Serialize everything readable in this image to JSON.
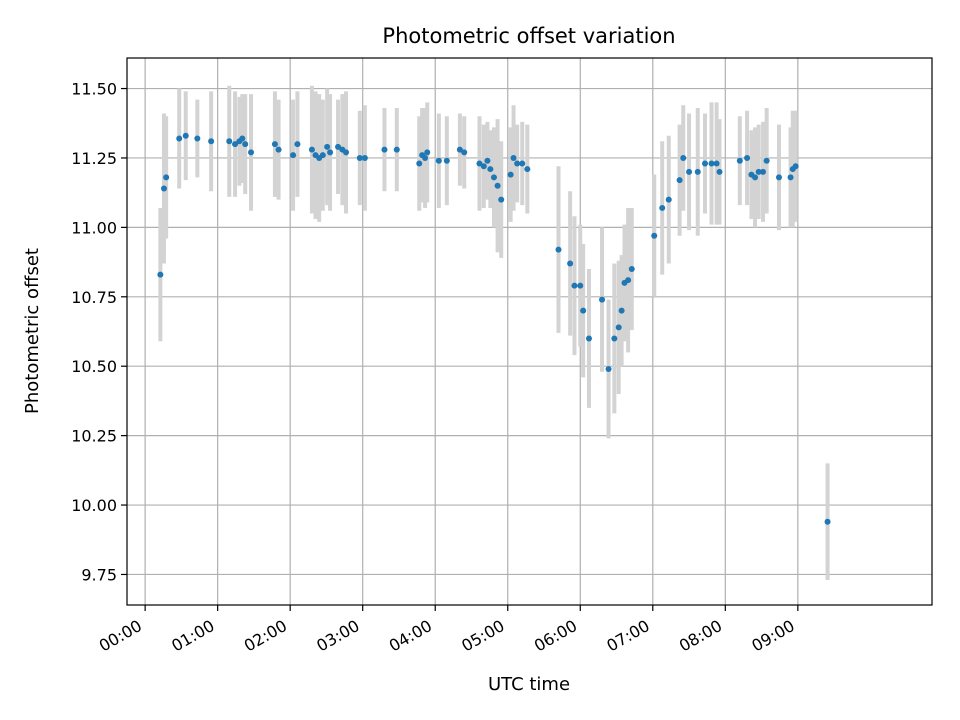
{
  "chart_data": {
    "type": "scatter",
    "title": "Photometric offset variation",
    "xlabel": "UTC time",
    "ylabel": "Photometric offset",
    "xlim": [
      "-0.25",
      "10.85"
    ],
    "ylim": [
      9.64,
      11.61
    ],
    "x_unit": "hours UTC",
    "x_ticks": [
      0,
      1,
      2,
      3,
      4,
      5,
      6,
      7,
      8,
      9
    ],
    "x_tick_labels": [
      "00:00",
      "01:00",
      "02:00",
      "03:00",
      "04:00",
      "05:00",
      "06:00",
      "07:00",
      "08:00",
      "09:00"
    ],
    "y_ticks": [
      9.75,
      10.0,
      10.25,
      10.5,
      10.75,
      11.0,
      11.25,
      11.5
    ],
    "y_tick_labels": [
      "9.75",
      "10.00",
      "10.25",
      "10.50",
      "10.75",
      "11.00",
      "11.25",
      "11.50"
    ],
    "grid": true,
    "colors": {
      "points": "#1f77b4",
      "errorbars": "#d3d3d3",
      "grid": "#b0b0b0"
    },
    "series": [
      {
        "x": [
          0.21,
          0.26,
          0.29,
          0.47,
          0.56,
          0.72,
          0.91,
          1.16,
          1.24,
          1.3,
          1.34,
          1.38,
          1.46,
          1.79,
          1.84,
          2.04,
          2.1,
          2.3,
          2.35,
          2.4,
          2.45,
          2.51,
          2.55,
          2.66,
          2.72,
          2.77,
          2.96,
          3.03,
          3.3,
          3.47,
          3.78,
          3.82,
          3.86,
          3.89,
          4.05,
          4.16,
          4.34,
          4.4,
          4.61,
          4.67,
          4.72,
          4.76,
          4.81,
          4.86,
          4.91,
          5.04,
          5.08,
          5.13,
          5.2,
          5.27,
          5.7,
          5.86,
          5.92,
          6.0,
          6.04,
          6.12,
          6.3,
          6.39,
          6.47,
          6.53,
          6.57,
          6.61,
          6.66,
          6.71,
          7.02,
          7.13,
          7.22,
          7.37,
          7.42,
          7.5,
          7.62,
          7.72,
          7.81,
          7.88,
          7.92,
          8.2,
          8.3,
          8.36,
          8.41,
          8.46,
          8.52,
          8.57,
          8.74,
          8.9,
          8.93,
          8.97,
          9.41
        ],
        "y": [
          10.83,
          11.14,
          11.18,
          11.32,
          11.33,
          11.32,
          11.31,
          11.31,
          11.3,
          11.31,
          11.32,
          11.3,
          11.27,
          11.3,
          11.28,
          11.26,
          11.3,
          11.28,
          11.26,
          11.25,
          11.26,
          11.29,
          11.27,
          11.29,
          11.28,
          11.27,
          11.25,
          11.25,
          11.28,
          11.28,
          11.23,
          11.26,
          11.25,
          11.27,
          11.24,
          11.24,
          11.28,
          11.27,
          11.23,
          11.22,
          11.24,
          11.21,
          11.18,
          11.15,
          11.1,
          11.19,
          11.25,
          11.23,
          11.23,
          11.21,
          10.92,
          10.87,
          10.79,
          10.79,
          10.7,
          10.6,
          10.74,
          10.49,
          10.6,
          10.64,
          10.7,
          10.8,
          10.81,
          10.85,
          10.97,
          11.07,
          11.1,
          11.17,
          11.25,
          11.2,
          11.2,
          11.23,
          11.23,
          11.23,
          11.2,
          11.24,
          11.25,
          11.19,
          11.18,
          11.2,
          11.2,
          11.24,
          11.18,
          11.18,
          11.21,
          11.22,
          9.94
        ],
        "err": [
          0.24,
          0.27,
          0.22,
          0.18,
          0.16,
          0.14,
          0.18,
          0.2,
          0.19,
          0.16,
          0.16,
          0.18,
          0.21,
          0.19,
          0.18,
          0.2,
          0.19,
          0.23,
          0.23,
          0.23,
          0.2,
          0.21,
          0.21,
          0.17,
          0.2,
          0.22,
          0.17,
          0.19,
          0.15,
          0.15,
          0.17,
          0.17,
          0.18,
          0.18,
          0.17,
          0.16,
          0.13,
          0.13,
          0.17,
          0.15,
          0.14,
          0.14,
          0.18,
          0.24,
          0.21,
          0.17,
          0.19,
          0.14,
          0.15,
          0.16,
          0.3,
          0.26,
          0.25,
          0.22,
          0.24,
          0.25,
          0.26,
          0.25,
          0.27,
          0.24,
          0.2,
          0.21,
          0.26,
          0.22,
          0.22,
          0.24,
          0.23,
          0.2,
          0.19,
          0.21,
          0.23,
          0.18,
          0.22,
          0.22,
          0.19,
          0.16,
          0.17,
          0.16,
          0.18,
          0.17,
          0.18,
          0.19,
          0.19,
          0.18,
          0.21,
          0.2,
          0.21
        ]
      }
    ]
  }
}
